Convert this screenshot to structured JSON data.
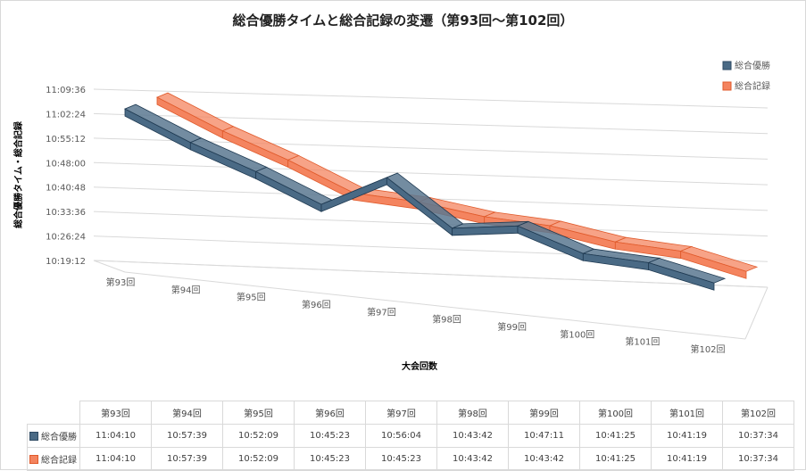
{
  "chart_data": {
    "type": "line",
    "variant": "3d-ribbon",
    "title": "総合優勝タイムと総合記録の変遷（第93回〜第102回）",
    "xlabel": "大会回数",
    "ylabel": "総合優勝タイム・総合記録",
    "categories": [
      "第93回",
      "第94回",
      "第95回",
      "第96回",
      "第97回",
      "第98回",
      "第99回",
      "第100回",
      "第101回",
      "第102回"
    ],
    "y_ticks": [
      "10:19:12",
      "10:26:24",
      "10:33:36",
      "10:40:48",
      "10:48:00",
      "10:55:12",
      "11:02:24",
      "11:09:36"
    ],
    "ylim_seconds": [
      37152,
      40176
    ],
    "legend_position": "right",
    "series": [
      {
        "name": "総合優勝",
        "color": "#4a6a85",
        "labels": [
          "11:04:10",
          "10:57:39",
          "10:52:09",
          "10:45:23",
          "10:56:04",
          "10:43:42",
          "10:47:11",
          "10:41:25",
          "10:41:19",
          "10:37:34"
        ],
        "values_seconds": [
          39850,
          39459,
          39129,
          38723,
          39364,
          38622,
          38831,
          38485,
          38479,
          38254
        ]
      },
      {
        "name": "総合記録",
        "color": "#f4845f",
        "labels": [
          "11:04:10",
          "10:57:39",
          "10:52:09",
          "10:45:23",
          "10:45:23",
          "10:43:42",
          "10:43:42",
          "10:41:25",
          "10:41:19",
          "10:37:34"
        ],
        "values_seconds": [
          39850,
          39459,
          39129,
          38723,
          38723,
          38622,
          38622,
          38485,
          38479,
          38254
        ]
      }
    ]
  }
}
